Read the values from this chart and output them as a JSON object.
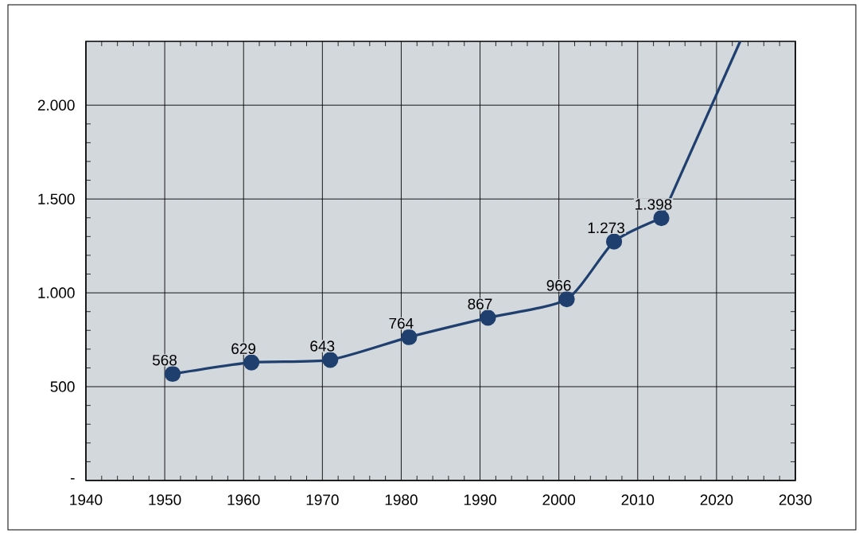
{
  "chart_data": {
    "type": "line",
    "xlim": [
      1940,
      2030
    ],
    "ylim": [
      0,
      2340
    ],
    "xticks": [
      1940,
      1950,
      1960,
      1970,
      1980,
      1990,
      2000,
      2010,
      2020,
      2030
    ],
    "yticks": [
      {
        "value": 0,
        "label": "-"
      },
      {
        "value": 500,
        "label": "500"
      },
      {
        "value": 1000,
        "label": "1.000"
      },
      {
        "value": 1500,
        "label": "1.500"
      },
      {
        "value": 2000,
        "label": "2.000"
      }
    ],
    "grid": true,
    "line_style": "solid",
    "series": [
      {
        "color": "#1f3f6e",
        "marker": "circle",
        "x": [
          1951,
          1961,
          1971,
          1981,
          1991,
          2001,
          2007,
          2013
        ],
        "values": [
          568,
          629,
          643,
          764,
          867,
          966,
          1273,
          1398
        ],
        "value_labels": [
          "568",
          "629",
          "643",
          "764",
          "867",
          "966",
          "1.273",
          "1.398"
        ]
      },
      {
        "color": "#1f3f6e",
        "marker": "none",
        "x": [
          2013,
          2023
        ],
        "values": [
          1398,
          2340
        ]
      }
    ]
  }
}
